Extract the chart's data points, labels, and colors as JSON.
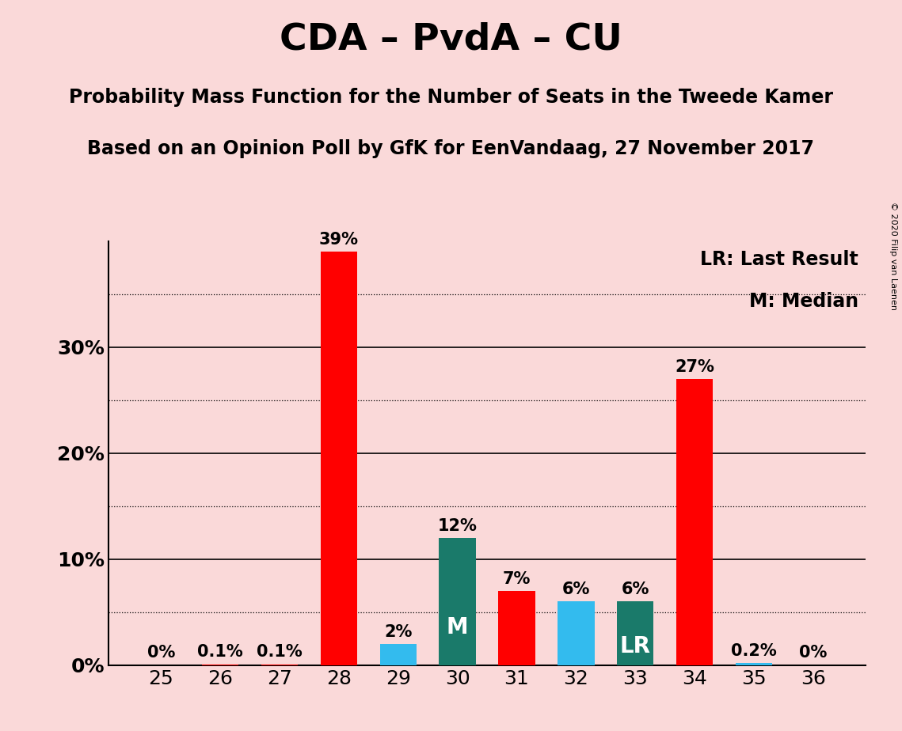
{
  "title": "CDA – PvdA – CU",
  "subtitle1": "Probability Mass Function for the Number of Seats in the Tweede Kamer",
  "subtitle2": "Based on an Opinion Poll by GfK for EenVandaag, 27 November 2017",
  "copyright": "© 2020 Filip van Laenen",
  "categories": [
    25,
    26,
    27,
    28,
    29,
    30,
    31,
    32,
    33,
    34,
    35,
    36
  ],
  "values": [
    0.0,
    0.1,
    0.1,
    39.0,
    2.0,
    12.0,
    7.0,
    6.0,
    6.0,
    27.0,
    0.2,
    0.0
  ],
  "labels": [
    "0%",
    "0.1%",
    "0.1%",
    "39%",
    "2%",
    "12%",
    "7%",
    "6%",
    "6%",
    "27%",
    "0.2%",
    "0%"
  ],
  "colors": [
    "#FF0000",
    "#FF0000",
    "#FF0000",
    "#FF0000",
    "#33BBEE",
    "#1A7A6A",
    "#FF0000",
    "#33BBEE",
    "#1A7A6A",
    "#FF0000",
    "#33BBEE",
    "#FF0000"
  ],
  "bar_labels": [
    "",
    "",
    "",
    "",
    "",
    "M",
    "",
    "",
    "LR",
    "",
    "",
    ""
  ],
  "bar_label_color": "white",
  "background_color": "#FAD9D9",
  "legend_text1": "LR: Last Result",
  "legend_text2": "M: Median",
  "ylim": [
    0,
    40
  ],
  "solid_lines": [
    10,
    20,
    30
  ],
  "dotted_lines": [
    5,
    15,
    25,
    35
  ],
  "ytick_positions": [
    0,
    10,
    20,
    30
  ],
  "ytick_labels": [
    "0%",
    "10%",
    "20%",
    "30%"
  ],
  "title_fontsize": 34,
  "subtitle_fontsize": 17,
  "label_fontsize": 15,
  "bar_label_fontsize": 20,
  "tick_fontsize": 18,
  "legend_fontsize": 17
}
